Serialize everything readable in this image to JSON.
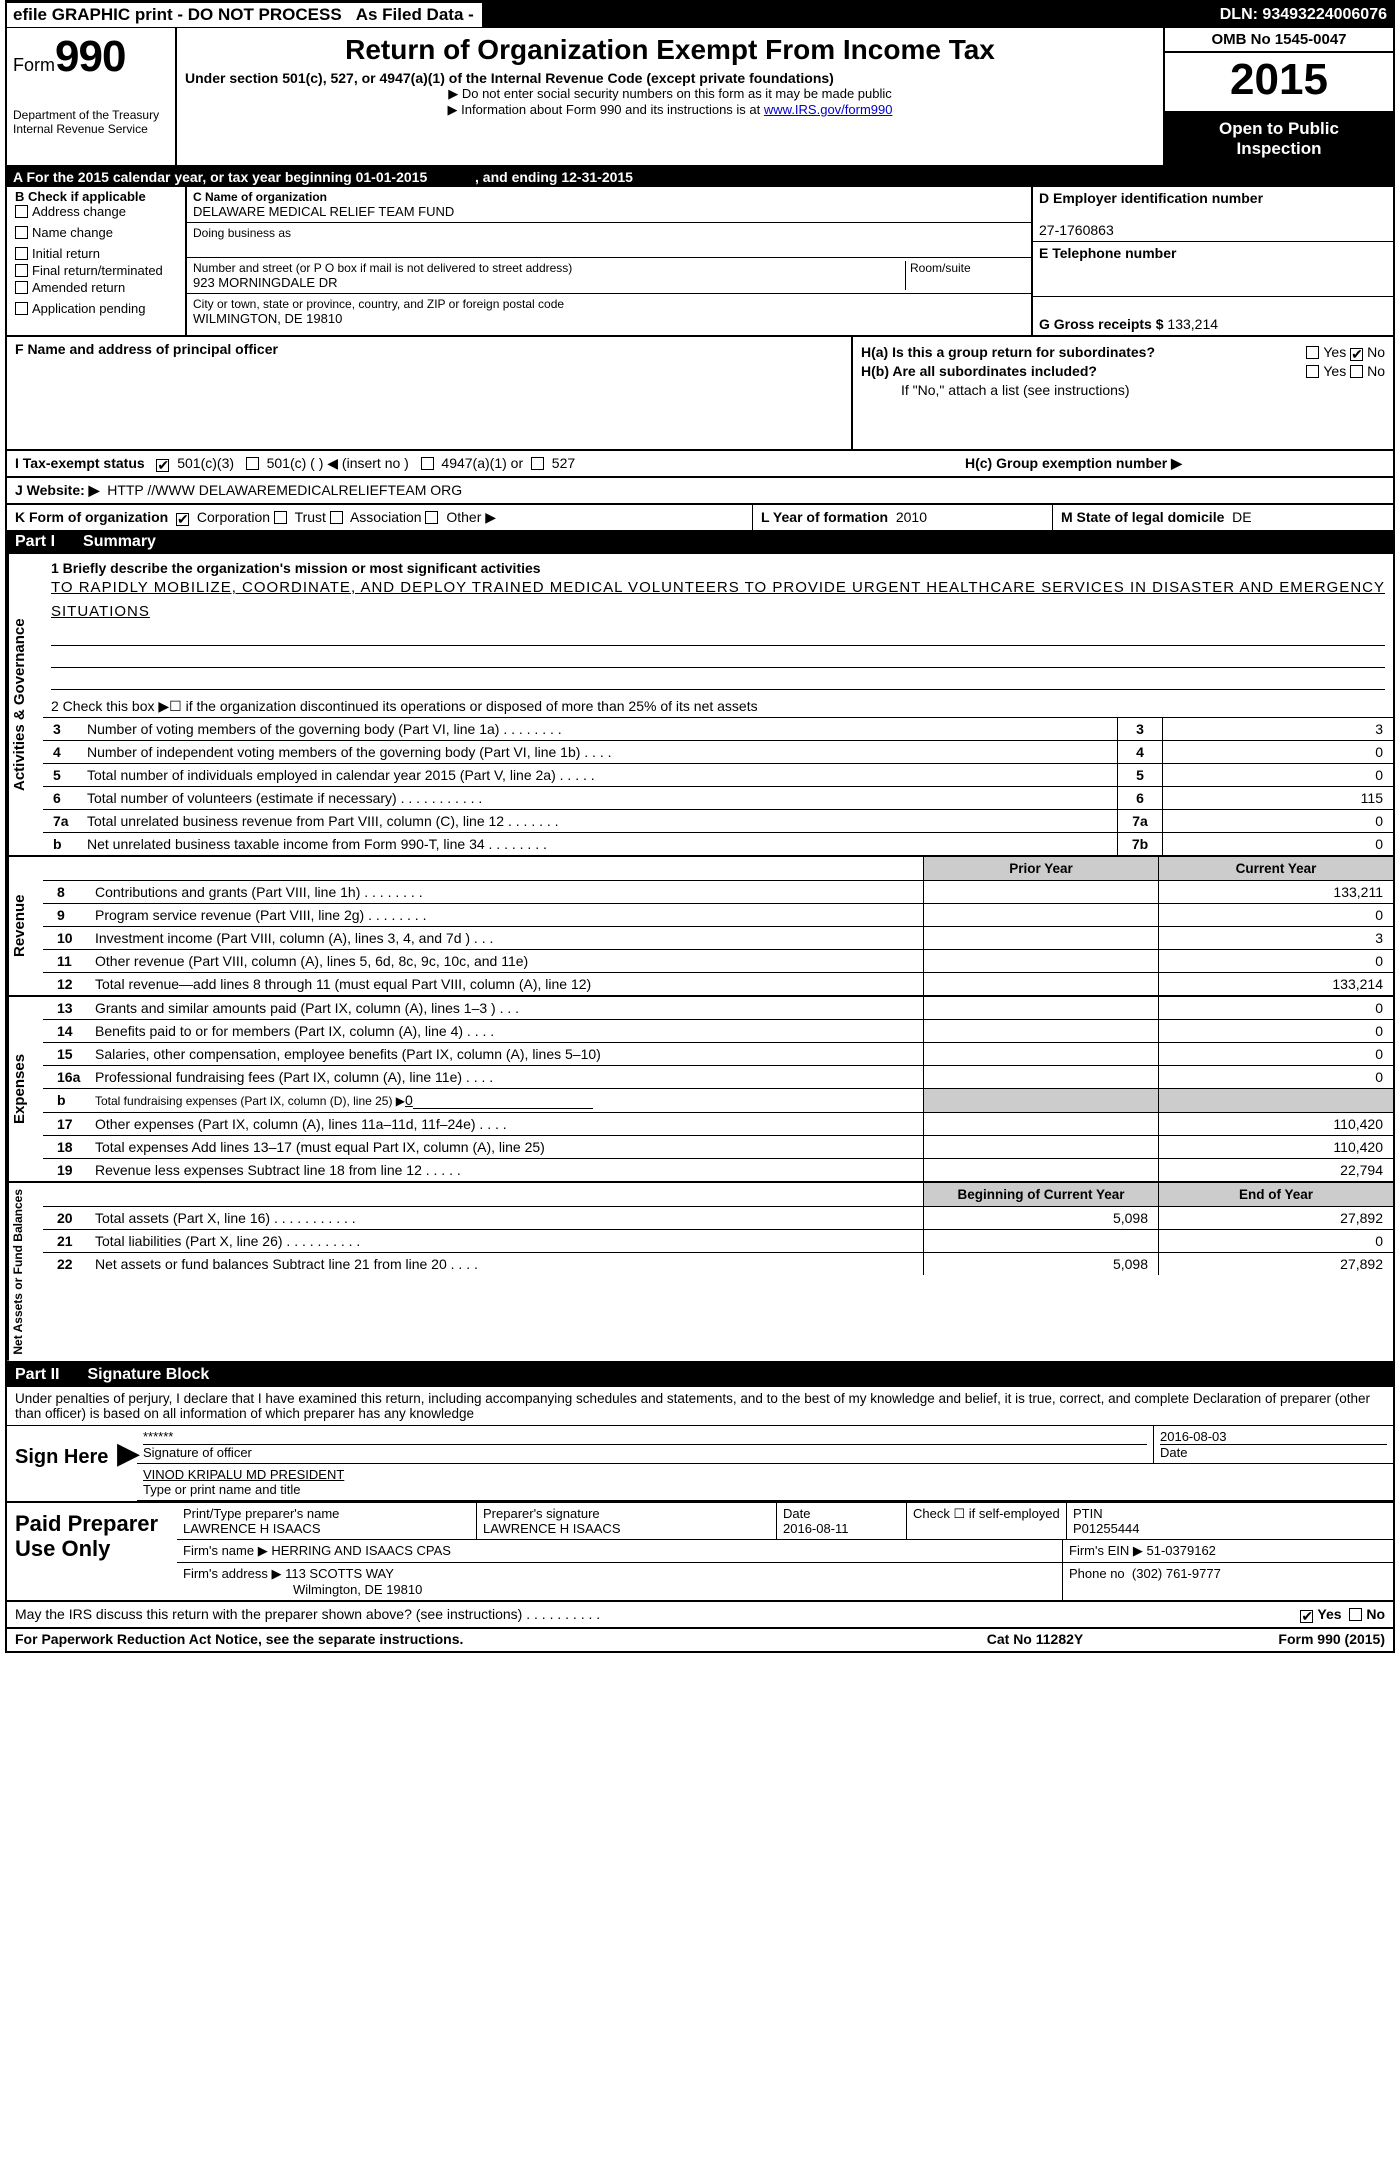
{
  "topbar": {
    "efile": "efile GRAPHIC print - DO NOT PROCESS",
    "asfiled": "As Filed Data -",
    "dln_label": "DLN:",
    "dln": "93493224006076"
  },
  "header": {
    "form_word": "Form",
    "form_no": "990",
    "dept1": "Department of the Treasury",
    "dept2": "Internal Revenue Service",
    "title": "Return of Organization Exempt From Income Tax",
    "subtitle": "Under section 501(c), 527, or 4947(a)(1) of the Internal Revenue Code (except private foundations)",
    "instr1": "▶ Do not enter social security numbers on this form as it may be made public",
    "instr2_pre": "▶ Information about Form 990 and its instructions is at ",
    "instr2_link": "www.IRS.gov/form990",
    "omb": "OMB No 1545-0047",
    "year": "2015",
    "inspection1": "Open to Public",
    "inspection2": "Inspection"
  },
  "yearbar": {
    "pre": "A  For the 2015 calendar year, or tax year beginning 01-01-2015",
    "mid": ", and ending 12-31-2015"
  },
  "colB": {
    "label": "B  Check if applicable",
    "items": [
      "Address change",
      "Name change",
      "Initial return",
      "Final return/terminated",
      "Amended return",
      "Application pending"
    ]
  },
  "colC": {
    "c_label": "C Name of organization",
    "c_name": "DELAWARE MEDICAL RELIEF TEAM FUND",
    "dba_label": "Doing business as",
    "addr_label": "Number and street (or P O  box if mail is not delivered to street address)",
    "room_label": "Room/suite",
    "addr": "923 MORNINGDALE DR",
    "city_label": "City or town, state or province, country, and ZIP or foreign postal code",
    "city": "WILMINGTON, DE  19810",
    "f_label": "F   Name and address of principal officer"
  },
  "colD": {
    "d_label": "D Employer identification number",
    "d_val": "27-1760863",
    "e_label": "E Telephone number",
    "g_label": "G Gross receipts $",
    "g_val": "133,214"
  },
  "H": {
    "ha": "H(a)  Is this a group return for subordinates?",
    "hb": "H(b)  Are all subordinates included?",
    "hnote": "If \"No,\" attach a list  (see instructions)",
    "hc": "H(c)   Group exemption number ▶",
    "yes": "Yes",
    "no": "No"
  },
  "I": {
    "label": "I   Tax-exempt status",
    "opts": [
      "501(c)(3)",
      "501(c) (  ) ◀ (insert no )",
      "4947(a)(1) or",
      "527"
    ]
  },
  "J": {
    "label": "J  Website: ▶",
    "val": "HTTP //WWW DELAWAREMEDICALRELIEFTEAM ORG"
  },
  "K": {
    "label": "K Form of organization",
    "opts": [
      "Corporation",
      "Trust",
      "Association",
      "Other ▶"
    ]
  },
  "L": {
    "label": "L Year of formation",
    "val": "2010"
  },
  "M": {
    "label": "M State of legal domicile",
    "val": "DE"
  },
  "partI": {
    "header_num": "Part I",
    "header_txt": "Summary",
    "side_gov": "Activities & Governance",
    "side_rev": "Revenue",
    "side_exp": "Expenses",
    "side_net": "Net Assets or Fund Balances",
    "l1_label": "1 Briefly describe the organization's mission or most significant activities",
    "l1_text": "TO RAPIDLY MOBILIZE, COORDINATE, AND DEPLOY TRAINED MEDICAL VOLUNTEERS TO PROVIDE URGENT HEALTHCARE SERVICES IN DISASTER AND EMERGENCY SITUATIONS",
    "l2": "2  Check this box ▶☐ if the organization discontinued its operations or disposed of more than 25% of its net assets",
    "rows_gov": [
      {
        "n": "3",
        "d": "Number of voting members of the governing body (Part VI, line 1a)  .   .   .   .   .   .   .   .",
        "k": "3",
        "v": "3"
      },
      {
        "n": "4",
        "d": "Number of independent voting members of the governing body (Part VI, line 1b)   .   .   .   .",
        "k": "4",
        "v": "0"
      },
      {
        "n": "5",
        "d": "Total number of individuals employed in calendar year 2015 (Part V, line 2a)   .   .   .   .   .",
        "k": "5",
        "v": "0"
      },
      {
        "n": "6",
        "d": "Total number of volunteers (estimate if necessary)   .   .   .   .   .   .   .   .   .   .   .",
        "k": "6",
        "v": "115"
      },
      {
        "n": "7a",
        "d": "Total unrelated business revenue from Part VIII, column (C), line 12   .   .   .   .   .   .   .",
        "k": "7a",
        "v": "0"
      },
      {
        "n": "b",
        "d": "Net unrelated business taxable income from Form 990-T, line 34   .   .   .   .   .   .   .   .",
        "k": "7b",
        "v": "0"
      }
    ],
    "fin_hdr_prior": "Prior Year",
    "fin_hdr_curr": "Current Year",
    "rows_rev": [
      {
        "n": "8",
        "d": "Contributions and grants (Part VIII, line 1h)   .   .   .   .   .   .   .   .",
        "v1": "",
        "v2": "133,211"
      },
      {
        "n": "9",
        "d": "Program service revenue (Part VIII, line 2g)   .   .   .   .   .   .   .   .",
        "v1": "",
        "v2": "0"
      },
      {
        "n": "10",
        "d": "Investment income (Part VIII, column (A), lines 3, 4, and 7d )   .   .   .",
        "v1": "",
        "v2": "3"
      },
      {
        "n": "11",
        "d": "Other revenue (Part VIII, column (A), lines 5, 6d, 8c, 9c, 10c, and 11e)",
        "v1": "",
        "v2": "0"
      },
      {
        "n": "12",
        "d": "Total revenue—add lines 8 through 11 (must equal Part VIII, column (A), line 12)",
        "v1": "",
        "v2": "133,214"
      }
    ],
    "rows_exp": [
      {
        "n": "13",
        "d": "Grants and similar amounts paid (Part IX, column (A), lines 1–3 )   .   .   .",
        "v1": "",
        "v2": "0"
      },
      {
        "n": "14",
        "d": "Benefits paid to or for members (Part IX, column (A), line 4)   .   .   .   .",
        "v1": "",
        "v2": "0"
      },
      {
        "n": "15",
        "d": "Salaries, other compensation, employee benefits (Part IX, column (A), lines 5–10)",
        "v1": "",
        "v2": "0"
      },
      {
        "n": "16a",
        "d": "Professional fundraising fees (Part IX, column (A), line 11e)   .   .   .   .",
        "v1": "",
        "v2": "0"
      },
      {
        "n": "b",
        "d": "Total fundraising expenses (Part IX, column (D), line 25) ▶",
        "v1": "shade",
        "v2": "shade",
        "inline": "0"
      },
      {
        "n": "17",
        "d": "Other expenses (Part IX, column (A), lines 11a–11d, 11f–24e)   .   .   .   .",
        "v1": "",
        "v2": "110,420"
      },
      {
        "n": "18",
        "d": "Total expenses  Add lines 13–17 (must equal Part IX, column (A), line 25)",
        "v1": "",
        "v2": "110,420"
      },
      {
        "n": "19",
        "d": "Revenue less expenses  Subtract line 18 from line 12   .   .   .   .   .",
        "v1": "",
        "v2": "22,794"
      }
    ],
    "net_hdr_beg": "Beginning of Current Year",
    "net_hdr_end": "End of Year",
    "rows_net": [
      {
        "n": "20",
        "d": "Total assets (Part X, line 16)   .   .   .   .   .   .   .   .   .   .   .",
        "v1": "5,098",
        "v2": "27,892"
      },
      {
        "n": "21",
        "d": "Total liabilities (Part X, line 26)   .   .   .   .   .   .   .   .   .   .",
        "v1": "",
        "v2": "0"
      },
      {
        "n": "22",
        "d": "Net assets or fund balances  Subtract line 21 from line 20   .   .   .   .",
        "v1": "5,098",
        "v2": "27,892"
      }
    ]
  },
  "partII": {
    "header_num": "Part II",
    "header_txt": "Signature Block",
    "penalties": "Under penalties of perjury, I declare that I have examined this return, including accompanying schedules and statements, and to the best of my knowledge and belief, it is true, correct, and complete  Declaration of preparer (other than officer) is based on all information of which preparer has any knowledge",
    "sign_here": "Sign Here",
    "stars": "******",
    "sig_of_officer": "Signature of officer",
    "sig_date": "2016-08-03",
    "date_label": "Date",
    "officer_name": "VINOD KRIPALU MD PRESIDENT",
    "officer_type_label": "Type or print name and title",
    "paid_label": "Paid Preparer Use Only",
    "prep_name_label": "Print/Type preparer's name",
    "prep_name": "LAWRENCE H ISAACS",
    "prep_sig_label": "Preparer's signature",
    "prep_sig": "LAWRENCE H ISAACS",
    "prep_date_label": "Date",
    "prep_date": "2016-08-11",
    "check_if_label": "Check ☐ if self-employed",
    "ptin_label": "PTIN",
    "ptin": "P01255444",
    "firm_name_label": "Firm's name    ▶",
    "firm_name": "HERRING AND ISAACS CPAS",
    "firm_ein_label": "Firm's EIN ▶",
    "firm_ein": "51-0379162",
    "firm_addr_label": "Firm's address ▶",
    "firm_addr1": "113 SCOTTS WAY",
    "firm_addr2": "Wilmington, DE  19810",
    "phone_label": "Phone no",
    "phone": "(302) 761-9777",
    "discuss": "May the IRS discuss this return with the preparer shown above? (see instructions)   .   .   .   .   .   .   .   .   .   .",
    "discuss_yes": "Yes",
    "discuss_no": "No"
  },
  "footer": {
    "left": "For Paperwork Reduction Act Notice, see the separate instructions.",
    "mid": "Cat No  11282Y",
    "right": "Form 990 (2015)"
  }
}
